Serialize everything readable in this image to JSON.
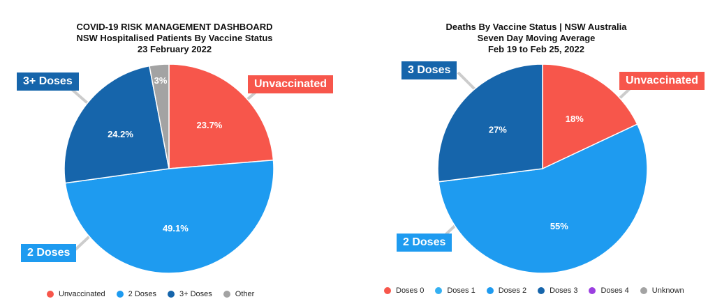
{
  "chart_data": [
    {
      "type": "pie",
      "title": [
        "COVID-19 RISK MANAGEMENT DASHBOARD",
        "NSW Hospitalised Patients By Vaccine Status",
        "23 February 2022"
      ],
      "slices": [
        {
          "label": "Unvaccinated",
          "value": 23.7,
          "display": "23.7%",
          "color": "#f7564b"
        },
        {
          "label": "2 Doses",
          "value": 49.1,
          "display": "49.1%",
          "color": "#1e9bf0"
        },
        {
          "label": "3+ Doses",
          "value": 24.2,
          "display": "24.2%",
          "color": "#1665ab"
        },
        {
          "label": "Other",
          "value": 3.0,
          "display": "3%",
          "color": "#a3a3a3"
        }
      ],
      "callouts": [
        {
          "text": "Unvaccinated",
          "color": "#f7564b"
        },
        {
          "text": "2 Doses",
          "color": "#1e9bf0"
        },
        {
          "text": "3+ Doses",
          "color": "#1665ab"
        }
      ],
      "legend": [
        {
          "label": "Unvaccinated",
          "color": "#f7564b"
        },
        {
          "label": "2 Doses",
          "color": "#1e9bf0"
        },
        {
          "label": "3+ Doses",
          "color": "#1665ab"
        },
        {
          "label": "Other",
          "color": "#a3a3a3"
        }
      ],
      "legend_position": "bottom"
    },
    {
      "type": "pie",
      "title": [
        "Deaths By Vaccine Status | NSW Australia",
        "Seven Day Moving Average",
        "Feb 19 to Feb 25, 2022"
      ],
      "slices": [
        {
          "label": "Doses 0",
          "value": 18,
          "display": "18%",
          "color": "#f7564b"
        },
        {
          "label": "Doses 2",
          "value": 55,
          "display": "55%",
          "color": "#1e9bf0"
        },
        {
          "label": "Doses 3",
          "value": 27,
          "display": "27%",
          "color": "#1665ab"
        }
      ],
      "callouts": [
        {
          "text": "Unvaccinated",
          "color": "#f7564b"
        },
        {
          "text": "2 Doses",
          "color": "#1e9bf0"
        },
        {
          "text": "3 Doses",
          "color": "#1665ab"
        }
      ],
      "legend": [
        {
          "label": "Doses 0",
          "color": "#f7564b"
        },
        {
          "label": "Doses 1",
          "color": "#34b0f2"
        },
        {
          "label": "Doses 2",
          "color": "#1e9bf0"
        },
        {
          "label": "Doses 3",
          "color": "#1665ab"
        },
        {
          "label": "Doses 4",
          "color": "#9b3fe0"
        },
        {
          "label": "Unknown",
          "color": "#a3a3a3"
        }
      ],
      "legend_position": "bottom"
    }
  ]
}
